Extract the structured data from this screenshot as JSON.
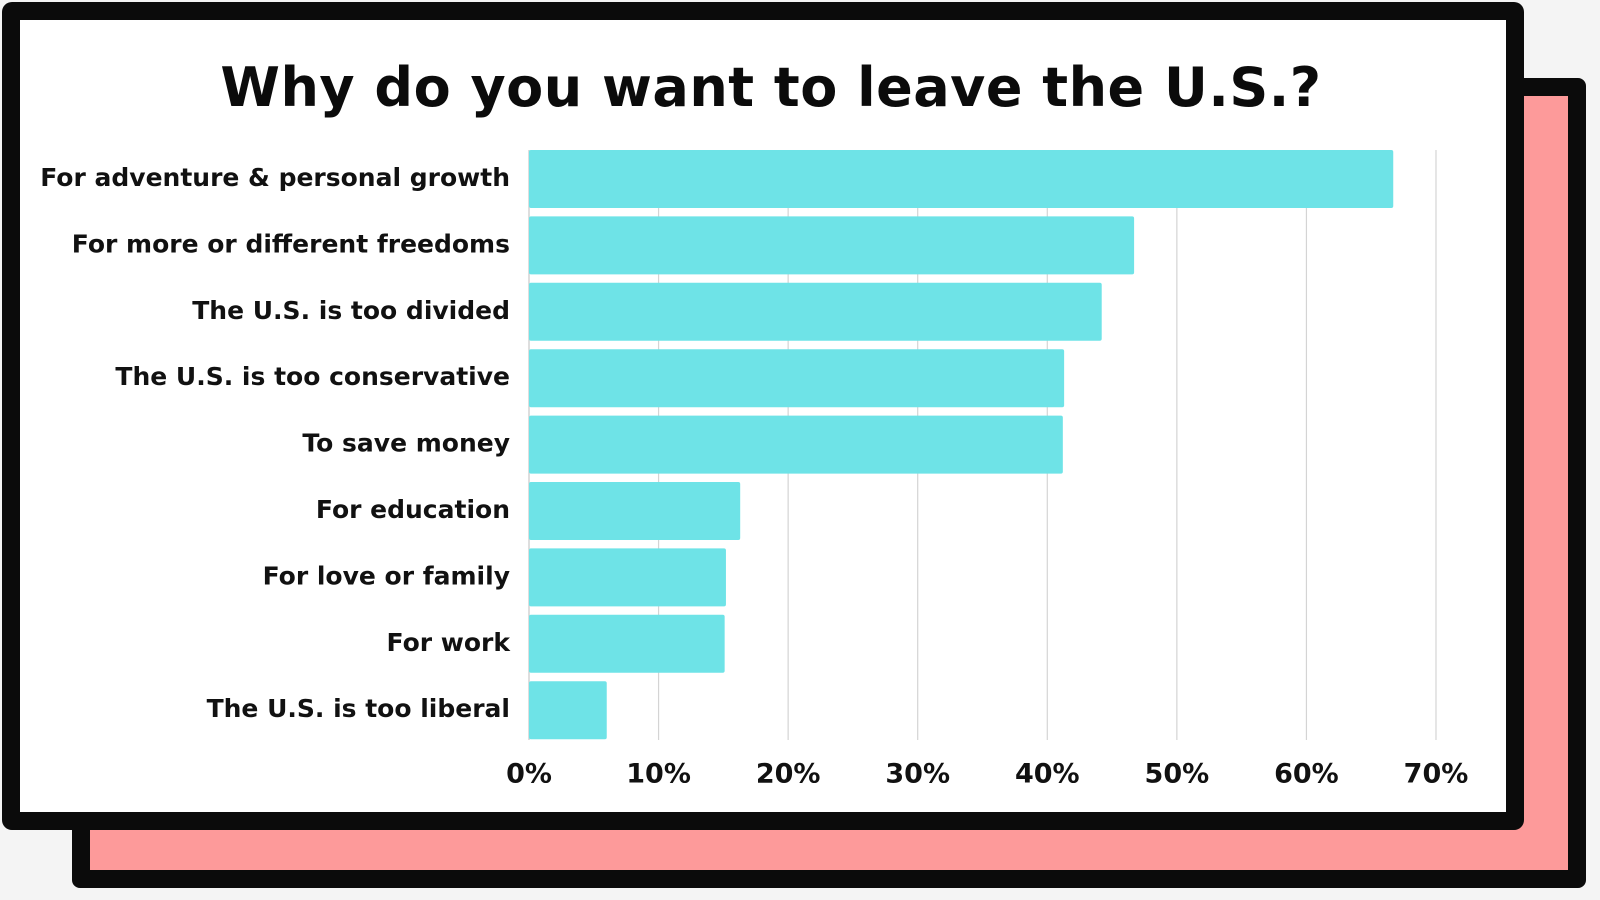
{
  "chart_data": {
    "type": "bar",
    "orientation": "horizontal",
    "title": "Why do you want to leave the U.S.?",
    "categories": [
      "For adventure & personal growth",
      "For more or different freedoms",
      "The U.S. is too divided",
      "The U.S. is too conservative",
      "To save money",
      "For education",
      "For love or family",
      "For work",
      "The U.S. is too liberal"
    ],
    "values": [
      66.7,
      46.7,
      44.2,
      41.3,
      41.2,
      16.3,
      15.2,
      15.1,
      6.0
    ],
    "xlim": [
      0,
      70
    ],
    "x_ticks": [
      0,
      10,
      20,
      30,
      40,
      50,
      60,
      70
    ],
    "x_tick_labels": [
      "0%",
      "10%",
      "20%",
      "30%",
      "40%",
      "50%",
      "60%",
      "70%"
    ],
    "xlabel": "",
    "ylabel": "",
    "grid": "vertical",
    "legend": "none",
    "colors": {
      "bar": "#6ee3e7",
      "grid": "#d4d4d4",
      "text": "#111111",
      "back_card": "#fd9a9a",
      "border": "#0b0b0b"
    }
  }
}
